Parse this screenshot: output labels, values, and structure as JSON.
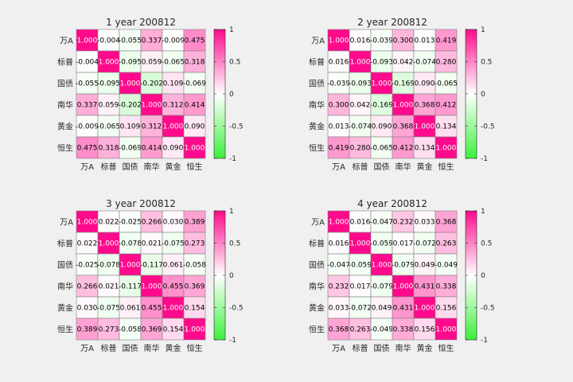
{
  "chart_data": [
    {
      "type": "heatmap",
      "title": "1 year    200812",
      "labels": [
        "万A",
        "标普",
        "国债",
        "南华",
        "黄金",
        "恒生"
      ],
      "matrix": [
        [
          1.0,
          -0.004,
          -0.055,
          0.337,
          -0.009,
          0.475
        ],
        [
          -0.004,
          1.0,
          -0.095,
          0.059,
          -0.065,
          0.318
        ],
        [
          -0.055,
          -0.095,
          1.0,
          -0.202,
          0.109,
          -0.069
        ],
        [
          0.337,
          0.059,
          -0.202,
          1.0,
          0.312,
          0.414
        ],
        [
          -0.009,
          -0.065,
          0.109,
          0.312,
          1.0,
          0.09
        ],
        [
          0.475,
          0.318,
          -0.069,
          0.414,
          0.09,
          1.0
        ]
      ],
      "colorbar": {
        "range": [
          -1,
          1
        ],
        "ticks": [
          "1",
          "0.5",
          "0",
          "-0.5",
          "-1"
        ]
      }
    },
    {
      "type": "heatmap",
      "title": "2 year    200812",
      "labels": [
        "万A",
        "标普",
        "国债",
        "南华",
        "黄金",
        "恒生"
      ],
      "matrix": [
        [
          1.0,
          0.016,
          -0.039,
          0.3,
          0.013,
          0.419
        ],
        [
          0.016,
          1.0,
          -0.093,
          0.042,
          -0.074,
          0.28
        ],
        [
          -0.039,
          -0.093,
          1.0,
          -0.169,
          0.09,
          -0.065
        ],
        [
          0.3,
          0.042,
          -0.169,
          1.0,
          0.368,
          0.412
        ],
        [
          0.013,
          -0.074,
          0.09,
          0.368,
          1.0,
          0.134
        ],
        [
          0.419,
          0.28,
          -0.065,
          0.412,
          0.134,
          1.0
        ]
      ],
      "colorbar": {
        "range": [
          -1,
          1
        ],
        "ticks": [
          "1",
          "0.5",
          "0",
          "-0.5",
          "-1"
        ]
      }
    },
    {
      "type": "heatmap",
      "title": "3 year    200812",
      "labels": [
        "万A",
        "标普",
        "国债",
        "南华",
        "黄金",
        "恒生"
      ],
      "matrix": [
        [
          1.0,
          0.022,
          -0.025,
          0.266,
          0.03,
          0.389
        ],
        [
          0.022,
          1.0,
          -0.078,
          0.021,
          -0.075,
          0.273
        ],
        [
          -0.025,
          -0.078,
          1.0,
          -0.117,
          0.061,
          -0.058
        ],
        [
          0.266,
          0.021,
          -0.117,
          1.0,
          0.455,
          0.369
        ],
        [
          0.03,
          -0.075,
          0.061,
          0.455,
          1.0,
          0.154
        ],
        [
          0.389,
          0.273,
          -0.058,
          0.369,
          0.154,
          1.0
        ]
      ],
      "colorbar": {
        "range": [
          -1,
          1
        ],
        "ticks": [
          "1",
          "0.5",
          "0",
          "-0.5",
          "-1"
        ]
      }
    },
    {
      "type": "heatmap",
      "title": "4 year    200812",
      "labels": [
        "万A",
        "标普",
        "国债",
        "南华",
        "黄金",
        "恒生"
      ],
      "matrix": [
        [
          1.0,
          0.016,
          -0.047,
          0.232,
          0.033,
          0.368
        ],
        [
          0.016,
          1.0,
          -0.059,
          0.017,
          -0.072,
          0.263
        ],
        [
          -0.047,
          -0.059,
          1.0,
          -0.079,
          0.049,
          -0.049
        ],
        [
          0.232,
          0.017,
          -0.079,
          1.0,
          0.431,
          0.338
        ],
        [
          0.033,
          -0.072,
          0.049,
          0.431,
          1.0,
          0.156
        ],
        [
          0.368,
          0.263,
          -0.049,
          0.338,
          0.156,
          1.0
        ]
      ],
      "colorbar": {
        "range": [
          -1,
          1
        ],
        "ticks": [
          "1",
          "0.5",
          "0",
          "-0.5",
          "-1"
        ]
      }
    }
  ],
  "colors": {
    "positive_max": "#ff0a8c",
    "neutral": "#ffffff",
    "negative_max": "#3cf03c",
    "background": "#f0f0f0",
    "grid": "#808080"
  }
}
